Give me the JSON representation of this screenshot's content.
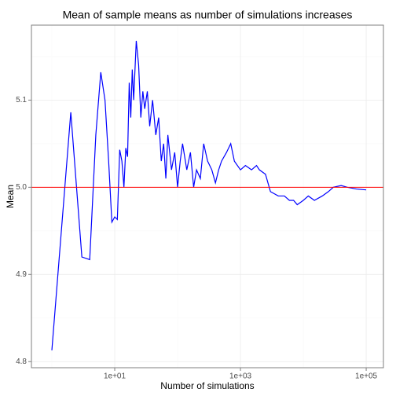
{
  "chart_data": {
    "type": "line",
    "title": "Mean of sample means as number of simulations increases",
    "x_label": "Number of simulations",
    "y_label": "Mean",
    "x_log": true,
    "grid": true,
    "xlim": [
      0.473,
      188000
    ],
    "ylim": [
      4.793,
      5.186
    ],
    "xticks": [
      {
        "value": 10,
        "label": "1e+01"
      },
      {
        "value": 1000,
        "label": "1e+03"
      },
      {
        "value": 100000,
        "label": "1e+05"
      }
    ],
    "xminorticks": [
      1,
      100,
      10000
    ],
    "yticks": [
      4.8,
      4.9,
      {
        "value": 5,
        "label": "5.0"
      },
      5.1
    ],
    "yminorticks": [
      4.85,
      4.95,
      5.05,
      5.15
    ],
    "hline": {
      "value": 5,
      "color": "#ff0000"
    },
    "x": [
      1,
      2,
      3,
      4,
      5,
      6,
      7,
      8,
      9,
      10,
      11,
      12,
      13,
      14,
      15,
      16,
      17,
      18,
      19,
      20,
      22,
      24,
      26,
      28,
      30,
      33,
      36,
      40,
      45,
      50,
      55,
      60,
      65,
      70,
      80,
      90,
      100,
      110,
      120,
      140,
      160,
      180,
      200,
      230,
      260,
      300,
      350,
      400,
      450,
      500,
      600,
      700,
      800,
      1000,
      1200,
      1500,
      1800,
      2000,
      2500,
      3000,
      4000,
      5000,
      6000,
      7000,
      8000,
      10000,
      12000,
      15000,
      20000,
      25000,
      30000,
      40000,
      50000,
      70000,
      100000
    ],
    "series": [
      {
        "name": "mean",
        "color": "#0000ff",
        "values": [
          4.813,
          5.086,
          4.92,
          4.917,
          5.06,
          5.132,
          5.1,
          5.03,
          4.96,
          4.966,
          4.963,
          5.043,
          5.03,
          5.0,
          5.045,
          5.035,
          5.12,
          5.08,
          5.135,
          5.1,
          5.168,
          5.14,
          5.08,
          5.11,
          5.09,
          5.11,
          5.07,
          5.1,
          5.06,
          5.08,
          5.03,
          5.05,
          5.01,
          5.06,
          5.02,
          5.04,
          5.0,
          5.03,
          5.05,
          5.02,
          5.04,
          5.0,
          5.02,
          5.01,
          5.05,
          5.03,
          5.02,
          5.005,
          5.02,
          5.03,
          5.04,
          5.05,
          5.03,
          5.02,
          5.025,
          5.02,
          5.025,
          5.02,
          5.015,
          4.995,
          4.99,
          4.99,
          4.985,
          4.985,
          4.98,
          4.985,
          4.99,
          4.985,
          4.99,
          4.995,
          5.0,
          5.002,
          5.0,
          4.998,
          4.997
        ]
      }
    ]
  }
}
